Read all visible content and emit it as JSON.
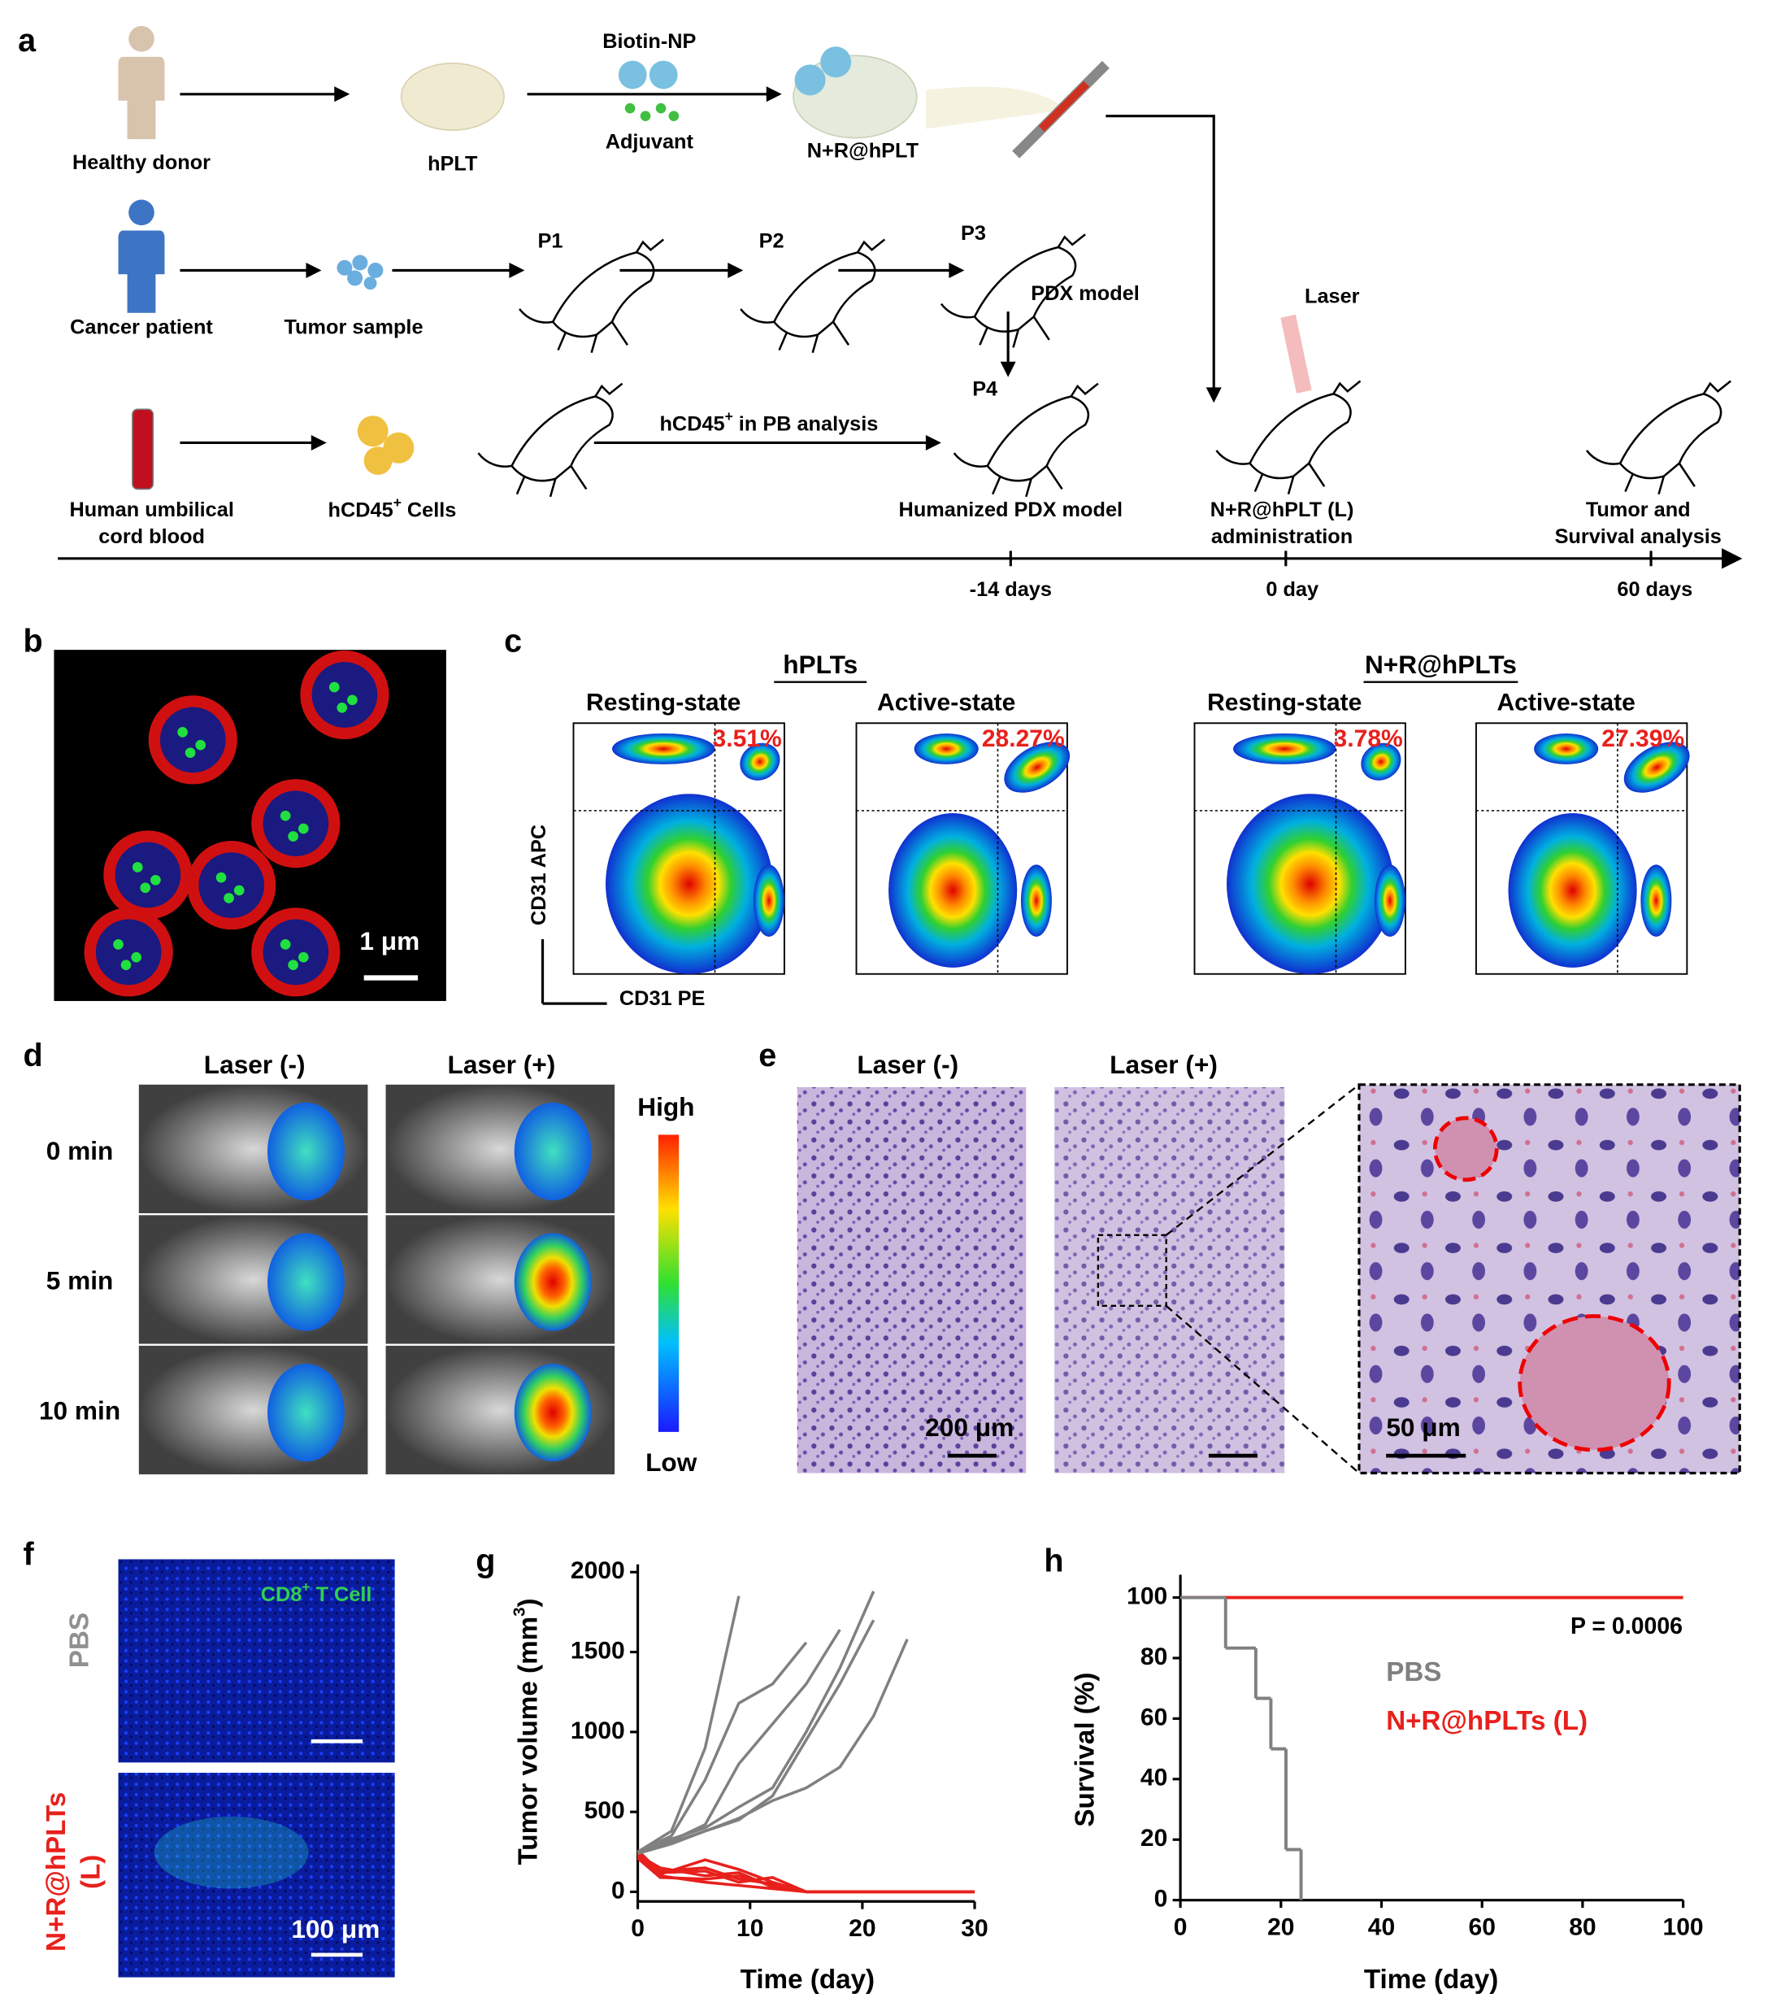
{
  "panel_a": {
    "label": "a",
    "healthy_donor": "Healthy donor",
    "hplt": "hPLT",
    "biotin_np": "Biotin-NP",
    "adjuvant": "Adjuvant",
    "nr_hplt": "N+R@hPLT",
    "cancer_patient": "Cancer patient",
    "tumor_sample": "Tumor sample",
    "p1": "P1",
    "p2": "P2",
    "p3": "P3",
    "pdx_model": "PDX model",
    "p4": "P4",
    "laser": "Laser",
    "cord_blood": [
      "Human umbilical",
      "cord blood"
    ],
    "hcd45_cells": {
      "base": "hCD45",
      "sup": "+",
      "rest": " Cells"
    },
    "pb_analysis": {
      "base": "hCD45",
      "sup": "+",
      "rest": " in PB analysis"
    },
    "humanized_pdx": "Humanized PDX model",
    "administration": [
      "N+R@hPLT (L)",
      "administration"
    ],
    "tumor_survival": [
      "Tumor and",
      "Survival analysis"
    ],
    "timeline": [
      "-14 days",
      "0 day",
      "60 days"
    ]
  },
  "panel_b": {
    "label": "b",
    "scale_bar": "1 μm"
  },
  "panel_c": {
    "label": "c",
    "groups": [
      {
        "title": "hPLTs",
        "plots": [
          {
            "state": "Resting-state",
            "percent": "3.51%"
          },
          {
            "state": "Active-state",
            "percent": "28.27%"
          }
        ]
      },
      {
        "title": "N+R@hPLTs",
        "plots": [
          {
            "state": "Resting-state",
            "percent": "3.78%"
          },
          {
            "state": "Active-state",
            "percent": "27.39%"
          }
        ]
      }
    ],
    "y_axis": "CD31 APC",
    "x_axis": "CD31 PE"
  },
  "panel_d": {
    "label": "d",
    "columns": [
      "Laser (-)",
      "Laser (+)"
    ],
    "rows": [
      "0 min",
      "5 min",
      "10 min"
    ],
    "colorbar": {
      "high": "High",
      "low": "Low"
    }
  },
  "panel_e": {
    "label": "e",
    "columns": [
      "Laser (-)",
      "Laser (+)"
    ],
    "scale_bars": [
      "200 μm",
      "50 μm"
    ]
  },
  "panel_f": {
    "label": "f",
    "rows": [
      "PBS",
      [
        "N+R@hPLTs",
        "(L)"
      ]
    ],
    "stain": {
      "base": "CD8",
      "sup": "+",
      "rest": " T Cell"
    },
    "scale_bar": "100 μm"
  },
  "chart_data": [
    {
      "type": "line",
      "panel_label": "g",
      "y_label": {
        "base": "Tumor volume (mm",
        "sup": "3",
        "rest": ")"
      },
      "x_label": "Time (day)",
      "xlim": [
        0,
        30
      ],
      "xticks": [
        0,
        10,
        20,
        30
      ],
      "ylim": [
        -60,
        2000
      ],
      "yticks": [
        0,
        500,
        1000,
        1500,
        2000
      ],
      "series": [
        {
          "color": "#808080",
          "x": [
            0,
            3,
            6,
            9
          ],
          "values": [
            250,
            380,
            900,
            1850
          ]
        },
        {
          "color": "#808080",
          "x": [
            0,
            3,
            6,
            9,
            12,
            15
          ],
          "values": [
            250,
            350,
            700,
            1180,
            1300,
            1560
          ]
        },
        {
          "color": "#808080",
          "x": [
            0,
            3,
            6,
            9,
            12,
            15,
            18,
            21
          ],
          "values": [
            250,
            330,
            400,
            530,
            650,
            1000,
            1400,
            1880
          ]
        },
        {
          "color": "#808080",
          "x": [
            0,
            3,
            6,
            9,
            12,
            15,
            18
          ],
          "values": [
            250,
            320,
            420,
            800,
            1050,
            1300,
            1640
          ]
        },
        {
          "color": "#808080",
          "x": [
            0,
            3,
            6,
            9,
            12,
            15,
            18,
            21
          ],
          "values": [
            240,
            310,
            380,
            450,
            600,
            950,
            1300,
            1700
          ]
        },
        {
          "color": "#808080",
          "x": [
            0,
            3,
            6,
            9,
            12,
            15,
            18,
            21,
            24
          ],
          "values": [
            240,
            300,
            380,
            460,
            570,
            650,
            780,
            1100,
            1580
          ]
        },
        {
          "color": "#e8201c",
          "x": [
            0,
            2,
            6,
            9,
            12,
            15,
            30
          ],
          "values": [
            250,
            130,
            150,
            80,
            50,
            0,
            0
          ]
        },
        {
          "color": "#e8201c",
          "x": [
            0,
            2,
            6,
            9,
            12,
            15,
            30
          ],
          "values": [
            240,
            110,
            200,
            140,
            60,
            0,
            0
          ]
        },
        {
          "color": "#e8201c",
          "x": [
            0,
            2,
            6,
            9,
            12,
            15,
            30
          ],
          "values": [
            230,
            150,
            100,
            120,
            30,
            0,
            0
          ]
        },
        {
          "color": "#e8201c",
          "x": [
            0,
            2,
            6,
            9,
            12,
            15,
            30
          ],
          "values": [
            220,
            100,
            60,
            40,
            20,
            0,
            0
          ]
        },
        {
          "color": "#e8201c",
          "x": [
            0,
            2,
            6,
            9,
            12,
            15,
            30
          ],
          "values": [
            260,
            120,
            130,
            60,
            90,
            0,
            0
          ]
        },
        {
          "color": "#e8201c",
          "x": [
            0,
            2,
            6,
            9,
            12,
            15,
            30
          ],
          "values": [
            210,
            90,
            80,
            100,
            40,
            0,
            0
          ]
        }
      ]
    },
    {
      "type": "step",
      "panel_label": "h",
      "y_label": "Survival (%)",
      "x_label": "Time (day)",
      "annotation": "P = 0.0006",
      "xlim": [
        0,
        100
      ],
      "xticks": [
        0,
        20,
        40,
        60,
        80,
        100
      ],
      "ylim": [
        0,
        105
      ],
      "yticks": [
        0,
        20,
        40,
        60,
        80,
        100
      ],
      "series": [
        {
          "name": "PBS",
          "color": "#808080",
          "x": [
            0,
            9,
            15,
            18,
            21,
            24
          ],
          "values": [
            100,
            83.3,
            66.7,
            50,
            16.7,
            0
          ]
        },
        {
          "name": "N+R@hPLTs (L)",
          "color": "#e8201c",
          "x": [
            0,
            100
          ],
          "values": [
            100,
            100
          ]
        }
      ]
    }
  ]
}
